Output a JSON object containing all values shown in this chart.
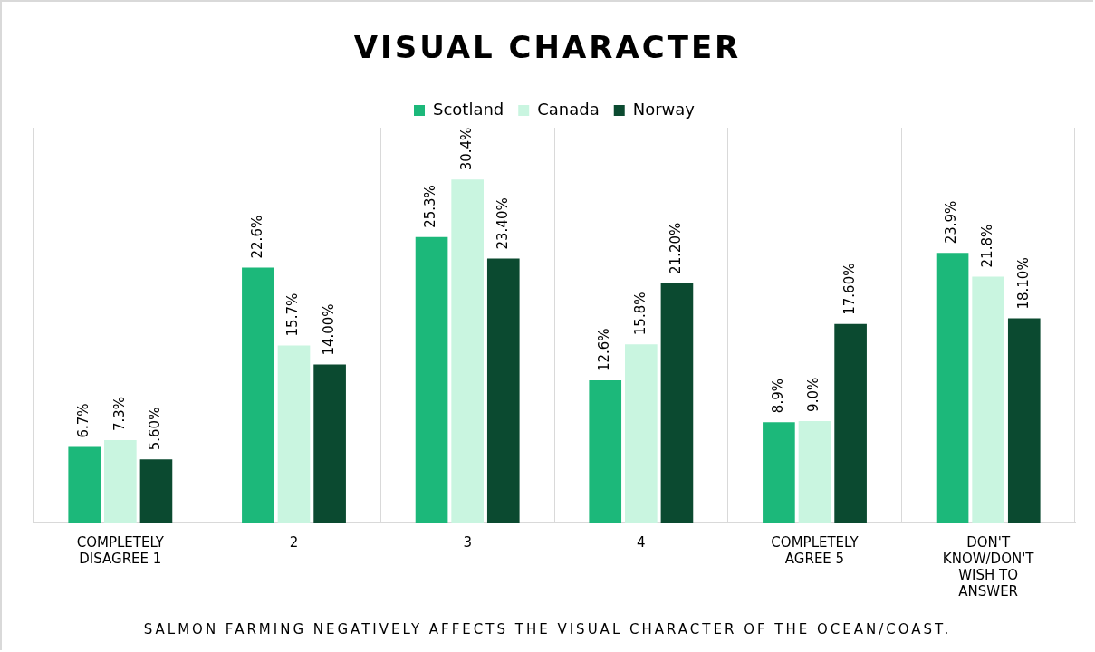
{
  "chart_data": {
    "type": "bar",
    "title": "VISUAL CHARACTER",
    "xlabel": "SALMON FARMING NEGATIVELY AFFECTS THE VISUAL CHARACTER OF THE OCEAN/COAST.",
    "categories": [
      "COMPLETELY DISAGREE 1",
      "2",
      "3",
      "4",
      "COMPLETELY AGREE 5",
      "DON'T KNOW/DON'T WISH TO ANSWER"
    ],
    "series": [
      {
        "name": "Scotland",
        "color": "#1cb87a",
        "values": [
          6.7,
          22.6,
          25.3,
          12.6,
          8.9,
          23.9
        ],
        "value_labels": [
          "6.7%",
          "22.6%",
          "25.3%",
          "12.6%",
          "8.9%",
          "23.9%"
        ]
      },
      {
        "name": "Canada",
        "color": "#c9f5e0",
        "values": [
          7.3,
          15.7,
          30.4,
          15.8,
          9.0,
          21.8
        ],
        "value_labels": [
          "7.3%",
          "15.7%",
          "30.4%",
          "15.8%",
          "9.0%",
          "21.8%"
        ]
      },
      {
        "name": "Norway",
        "color": "#0b4a30",
        "values": [
          5.6,
          14.0,
          23.4,
          21.2,
          17.6,
          18.1
        ],
        "value_labels": [
          "5.60%",
          "14.00%",
          "23.40%",
          "21.20%",
          "17.60%",
          "18.10%"
        ]
      }
    ],
    "ylim": [
      0,
      35
    ],
    "grid": "x",
    "legend": "top",
    "tick_labels": "x"
  }
}
